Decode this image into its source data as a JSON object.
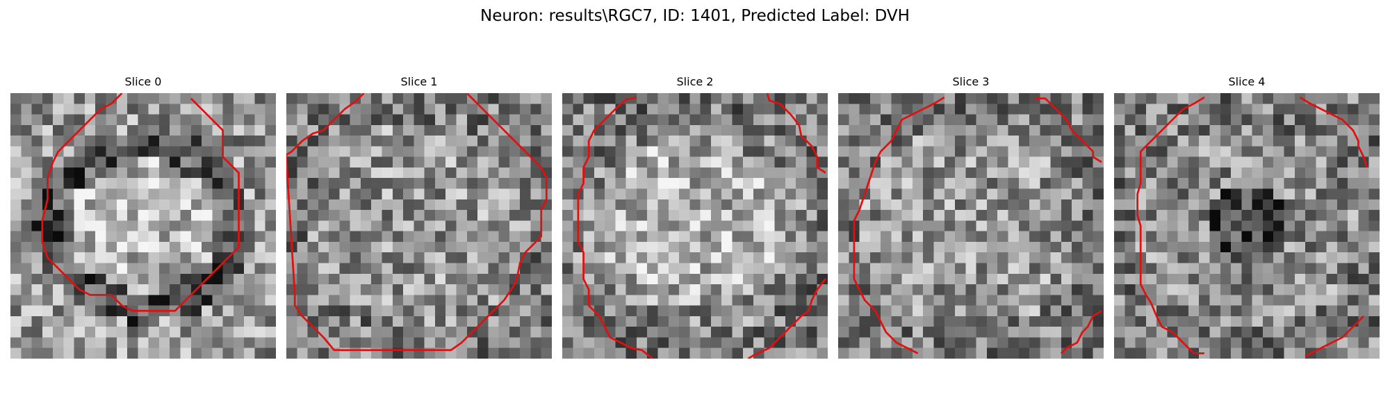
{
  "figure": {
    "title": "Neuron: results\\RGC7, ID: 1401, Predicted Label: DVH"
  },
  "grid_size": 25,
  "colors": {
    "contour": "#e01010"
  },
  "slices": [
    {
      "title": "Slice 0",
      "seed": 11,
      "shape": "ring",
      "contour": [
        [
          10.5,
          0
        ],
        [
          9.5,
          1
        ],
        [
          8.5,
          1.5
        ],
        [
          7.5,
          2.5
        ],
        [
          6.5,
          3.5
        ],
        [
          5.5,
          4.5
        ],
        [
          4.5,
          5.5
        ],
        [
          4,
          6.5
        ],
        [
          3.5,
          8
        ],
        [
          3.5,
          10
        ],
        [
          3,
          12
        ],
        [
          3,
          14
        ],
        [
          3.5,
          15.5
        ],
        [
          4.5,
          16.5
        ],
        [
          5.5,
          17.5
        ],
        [
          6.5,
          18.5
        ],
        [
          7.5,
          19
        ],
        [
          9.5,
          19
        ],
        [
          10.5,
          20
        ],
        [
          11.5,
          20.5
        ],
        [
          15.5,
          20.5
        ],
        [
          16.5,
          19.5
        ],
        [
          17.5,
          18.5
        ],
        [
          18.5,
          17.5
        ],
        [
          19.5,
          16.5
        ],
        [
          20.5,
          15.5
        ],
        [
          21.5,
          14.5
        ],
        [
          21.5,
          7.5
        ],
        [
          20.5,
          6.5
        ],
        [
          20,
          6
        ],
        [
          20,
          3.5
        ],
        [
          19,
          2.5
        ],
        [
          18,
          1.5
        ],
        [
          17,
          0.5
        ]
      ]
    },
    {
      "title": "Slice 1",
      "seed": 23,
      "shape": "noise",
      "contour": [
        [
          7.3,
          0
        ],
        [
          6.5,
          0.8
        ],
        [
          5.5,
          1.5
        ],
        [
          4.5,
          2.5
        ],
        [
          3.5,
          3.5
        ],
        [
          2.5,
          3.8
        ],
        [
          1.5,
          4.5
        ],
        [
          0.5,
          5.5
        ],
        [
          0,
          5.8
        ],
        [
          0,
          6.2
        ],
        [
          0.8,
          19
        ],
        [
          0.8,
          20
        ],
        [
          1.5,
          21
        ],
        [
          2.5,
          22
        ],
        [
          3.5,
          23
        ],
        [
          4.5,
          24.2
        ],
        [
          15.5,
          24.2
        ],
        [
          16.5,
          23.5
        ],
        [
          17.5,
          22.5
        ],
        [
          18.5,
          21.5
        ],
        [
          19.5,
          20.5
        ],
        [
          20.5,
          19.5
        ],
        [
          21.5,
          18
        ],
        [
          21.8,
          17
        ],
        [
          22,
          16
        ],
        [
          22.5,
          15
        ],
        [
          23.5,
          14
        ],
        [
          24,
          13.5
        ],
        [
          24,
          11
        ],
        [
          24.5,
          10
        ],
        [
          24.5,
          8
        ],
        [
          24,
          7
        ],
        [
          23,
          6
        ],
        [
          22,
          5
        ],
        [
          21,
          4
        ],
        [
          20,
          3
        ],
        [
          19,
          2
        ],
        [
          18,
          1
        ],
        [
          17,
          0
        ]
      ]
    },
    {
      "title": "Slice 2",
      "seed": 37,
      "shape": "center",
      "contour": [
        [
          7,
          0.4
        ],
        [
          6,
          0.6
        ],
        [
          5,
          1.5
        ],
        [
          4,
          2.5
        ],
        [
          3,
          3.5
        ],
        [
          2.5,
          4.5
        ],
        [
          2.5,
          6
        ],
        [
          2,
          7
        ],
        [
          2,
          8.5
        ],
        [
          1.5,
          9.5
        ],
        [
          1.5,
          14
        ],
        [
          2,
          15
        ],
        [
          2,
          17.5
        ],
        [
          2.5,
          18.5
        ],
        [
          2.5,
          20
        ],
        [
          3.5,
          21
        ],
        [
          4,
          22
        ],
        [
          4.5,
          23
        ],
        [
          5.5,
          23.5
        ],
        [
          6.5,
          24
        ],
        [
          7.5,
          24.2
        ],
        [
          8.5,
          25
        ]
      ],
      "contour_b": [
        [
          19.3,
          0
        ],
        [
          19.5,
          0.7
        ],
        [
          20.5,
          1
        ],
        [
          21.5,
          2
        ],
        [
          22.3,
          3
        ],
        [
          22.5,
          4
        ],
        [
          23.5,
          5
        ],
        [
          24,
          6
        ],
        [
          24,
          7
        ],
        [
          24.8,
          7.5
        ]
      ],
      "contour_c": [
        [
          24.8,
          17.5
        ],
        [
          24,
          18.5
        ],
        [
          23.5,
          19.5
        ],
        [
          23.2,
          20.5
        ],
        [
          22.5,
          21
        ],
        [
          21.5,
          22
        ],
        [
          20.5,
          23
        ],
        [
          19.5,
          24
        ],
        [
          18,
          24.7
        ],
        [
          17.5,
          25
        ]
      ]
    },
    {
      "title": "Slice 3",
      "seed": 53,
      "shape": "noise",
      "contour": [
        [
          10,
          0.4
        ],
        [
          9,
          1
        ],
        [
          8,
          1.5
        ],
        [
          7,
          2
        ],
        [
          6,
          2.5
        ],
        [
          5.5,
          3.5
        ],
        [
          5,
          4.5
        ],
        [
          4,
          5.5
        ],
        [
          3.5,
          6.5
        ],
        [
          3,
          8
        ],
        [
          2.5,
          9.5
        ],
        [
          2,
          11
        ],
        [
          1.5,
          12
        ],
        [
          1.5,
          17.5
        ],
        [
          2,
          18.5
        ],
        [
          2.5,
          19.5
        ],
        [
          3.5,
          20.5
        ],
        [
          4,
          21.5
        ],
        [
          4.5,
          22.5
        ],
        [
          5.5,
          23.5
        ],
        [
          6.5,
          24
        ],
        [
          7.5,
          24.5
        ]
      ],
      "contour_b": [
        [
          18.5,
          0.5
        ],
        [
          19.5,
          0.5
        ],
        [
          20.5,
          1.5
        ],
        [
          21.5,
          2.5
        ],
        [
          22,
          3.5
        ],
        [
          23,
          4.5
        ],
        [
          24,
          5.5
        ],
        [
          24,
          6
        ],
        [
          24.8,
          6.5
        ]
      ],
      "contour_c": [
        [
          24.8,
          20.5
        ],
        [
          24,
          21
        ],
        [
          23.5,
          22
        ],
        [
          23,
          22.5
        ],
        [
          22.5,
          23.5
        ],
        [
          21.5,
          24
        ],
        [
          21,
          24.5
        ]
      ]
    },
    {
      "title": "Slice 4",
      "seed": 71,
      "shape": "darkcenter",
      "contour": [
        [
          8.5,
          0.4
        ],
        [
          7.5,
          1
        ],
        [
          6.5,
          1.5
        ],
        [
          5.5,
          2.5
        ],
        [
          4.5,
          3.5
        ],
        [
          3.5,
          4.5
        ],
        [
          2.5,
          5.5
        ],
        [
          2.5,
          8.5
        ],
        [
          2.2,
          9.5
        ],
        [
          2.2,
          11.5
        ],
        [
          2.5,
          12.5
        ],
        [
          2.5,
          18
        ],
        [
          3,
          19
        ],
        [
          3.5,
          19.8
        ],
        [
          4,
          21
        ],
        [
          4.5,
          22
        ],
        [
          5.5,
          22.5
        ],
        [
          6.5,
          23.5
        ],
        [
          7.5,
          24.5
        ],
        [
          8.5,
          24.5
        ]
      ],
      "contour_b": [
        [
          17.5,
          0.4
        ],
        [
          18.5,
          1
        ],
        [
          19.5,
          1.5
        ],
        [
          20.5,
          2
        ],
        [
          21.5,
          2.5
        ],
        [
          22.5,
          3.5
        ],
        [
          23,
          4.5
        ],
        [
          23,
          5
        ],
        [
          23.5,
          6
        ],
        [
          23.8,
          7
        ]
      ],
      "contour_c": [
        [
          23.5,
          21
        ],
        [
          22.5,
          22
        ],
        [
          21.5,
          23
        ],
        [
          20.5,
          23.5
        ],
        [
          19.5,
          24
        ],
        [
          18.5,
          24.5
        ],
        [
          18,
          24.8
        ]
      ]
    }
  ]
}
